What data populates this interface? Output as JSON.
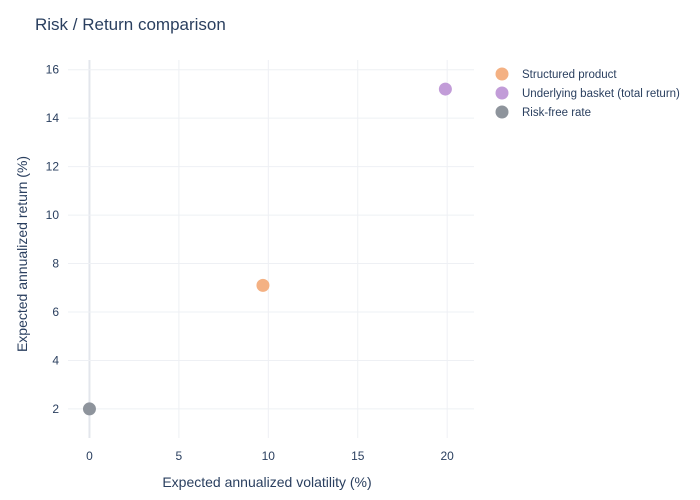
{
  "chart_data": {
    "type": "scatter",
    "title": "Risk / Return comparison",
    "xlabel": "Expected annualized volatility (%)",
    "ylabel": "Expected annualized return (%)",
    "xlim": [
      -1.2,
      21.5
    ],
    "ylim": [
      0.8,
      16.4
    ],
    "x_ticks": [
      0,
      5,
      10,
      15,
      20
    ],
    "y_ticks": [
      2,
      4,
      6,
      8,
      10,
      12,
      14,
      16
    ],
    "grid": true,
    "legend_position": "top-right",
    "series": [
      {
        "name": "Structured product",
        "color": "#f4b183",
        "points": [
          {
            "x": 9.7,
            "y": 7.1
          }
        ]
      },
      {
        "name": "Underlying basket (total return)",
        "color": "#c29cd8",
        "points": [
          {
            "x": 19.9,
            "y": 15.2
          }
        ]
      },
      {
        "name": "Risk-free rate",
        "color": "#8e949c",
        "points": [
          {
            "x": 0,
            "y": 2.0
          }
        ]
      }
    ]
  }
}
